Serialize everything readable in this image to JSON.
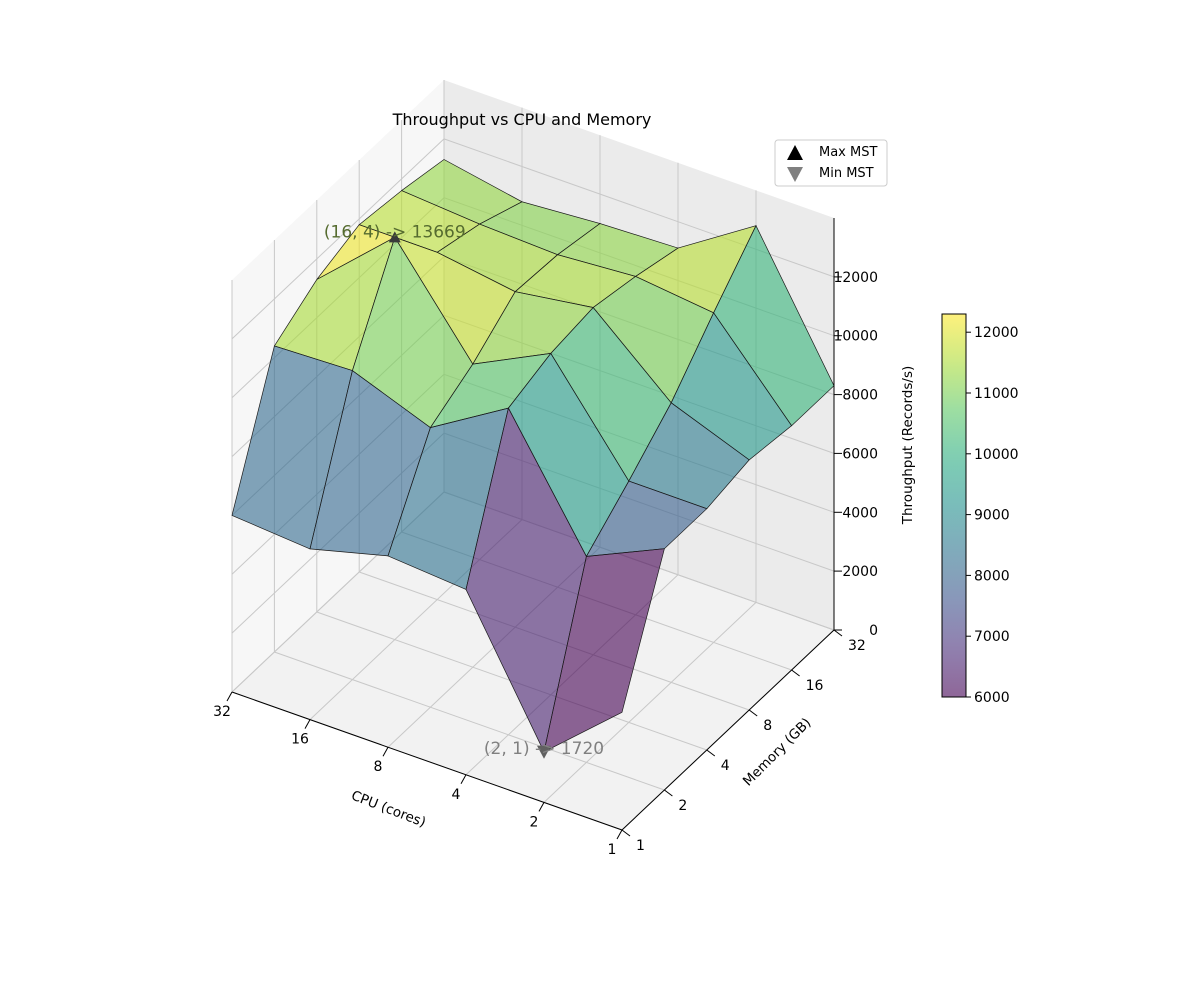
{
  "chart_data": {
    "type": "surface3d",
    "title": "Throughput vs CPU and Memory",
    "xlabel": "CPU (cores)",
    "ylabel": "Memory (GB)",
    "zlabel": "Throughput (Records/s)",
    "x": [
      1,
      2,
      4,
      8,
      16,
      32
    ],
    "y": [
      1,
      2,
      4,
      8,
      16,
      32
    ],
    "x_tick_labels": [
      "1",
      "2",
      "4",
      "8",
      "16",
      "32"
    ],
    "y_tick_labels": [
      "1",
      "2",
      "4",
      "8",
      "16",
      "32"
    ],
    "zlim": [
      0,
      14000
    ],
    "z_ticks": [
      0,
      2000,
      4000,
      6000,
      8000,
      10000,
      12000
    ],
    "z_tick_labels": [
      "0",
      "2000",
      "4000",
      "6000",
      "8000",
      "10000",
      "12000"
    ],
    "z": [
      [
        4000,
        8200,
        8200,
        8500,
        8300,
        8300
      ],
      [
        1720,
        7000,
        8200,
        9500,
        11200,
        12800
      ],
      [
        6300,
        11100,
        11600,
        11800,
        11500,
        11100
      ],
      [
        6500,
        9500,
        10300,
        11400,
        11300,
        11000
      ],
      [
        5800,
        10500,
        13669,
        11800,
        11400,
        10800
      ],
      [
        6000,
        10400,
        11300,
        11800,
        11600,
        11300
      ]
    ],
    "colorbar": {
      "min": 6000,
      "max": 12300,
      "ticks": [
        6000,
        7000,
        8000,
        9000,
        10000,
        11000,
        12000
      ],
      "tick_labels": [
        "6000",
        "7000",
        "8000",
        "9000",
        "10000",
        "11000",
        "12000"
      ],
      "colormap": "viridis"
    },
    "grid": true,
    "legend_position": "top-right",
    "legend": [
      {
        "label": "Max MST",
        "marker": "triangle-up",
        "color": "#000000"
      },
      {
        "label": "Min MST",
        "marker": "triangle-down",
        "color": "#808080"
      }
    ],
    "annotations": [
      {
        "text": "(16, 4) -> 13669",
        "x": 16,
        "y": 4,
        "z": 13669,
        "kind": "max",
        "color": "#556b2f"
      },
      {
        "text": "(2, 1) -> 1720",
        "x": 2,
        "y": 1,
        "z": 1720,
        "kind": "min",
        "color": "#808080"
      }
    ]
  }
}
